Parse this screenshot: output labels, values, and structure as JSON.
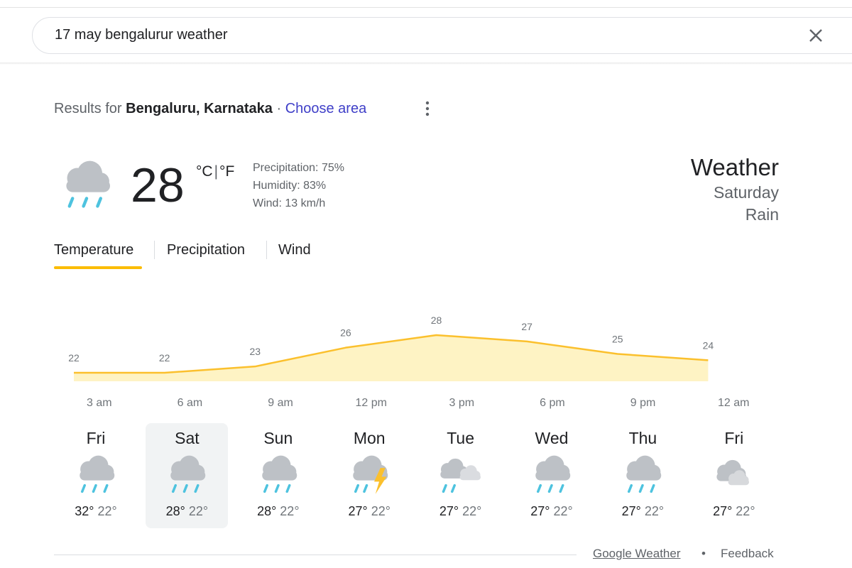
{
  "search": {
    "query": "17 may bengalurur weather"
  },
  "location": {
    "prefix": "Results for",
    "place": "Bengaluru, Karnataka",
    "separator": "·",
    "link": "Choose area"
  },
  "current": {
    "temperature": "28",
    "unit_c": "°C",
    "unit_sep": "|",
    "unit_f": "°F",
    "precipitation": "Precipitation: 75%",
    "humidity": "Humidity: 83%",
    "wind": "Wind: 13 km/h"
  },
  "summary": {
    "title": "Weather",
    "day": "Saturday",
    "condition": "Rain"
  },
  "tabs": [
    "Temperature",
    "Precipitation",
    "Wind"
  ],
  "hourly": {
    "times": [
      "3 am",
      "6 am",
      "9 am",
      "12 pm",
      "3 pm",
      "6 pm",
      "9 pm",
      "12 am"
    ],
    "temperatures": [
      22,
      22,
      23,
      26,
      28,
      27,
      25,
      24
    ],
    "color": "#fbc02d",
    "fill": "#fef3c4"
  },
  "daily": [
    {
      "day": "Fri",
      "high": "32°",
      "low": "22°"
    },
    {
      "day": "Sat",
      "high": "28°",
      "low": "22°"
    },
    {
      "day": "Sun",
      "high": "28°",
      "low": "22°"
    },
    {
      "day": "Mon",
      "high": "27°",
      "low": "22°"
    },
    {
      "day": "Tue",
      "high": "27°",
      "low": "22°"
    },
    {
      "day": "Wed",
      "high": "27°",
      "low": "22°"
    },
    {
      "day": "Thu",
      "high": "27°",
      "low": "22°"
    },
    {
      "day": "Fri",
      "high": "27°",
      "low": "22°"
    }
  ],
  "footer": {
    "source": "Google Weather",
    "separator": "•",
    "feedback": "Feedback"
  }
}
